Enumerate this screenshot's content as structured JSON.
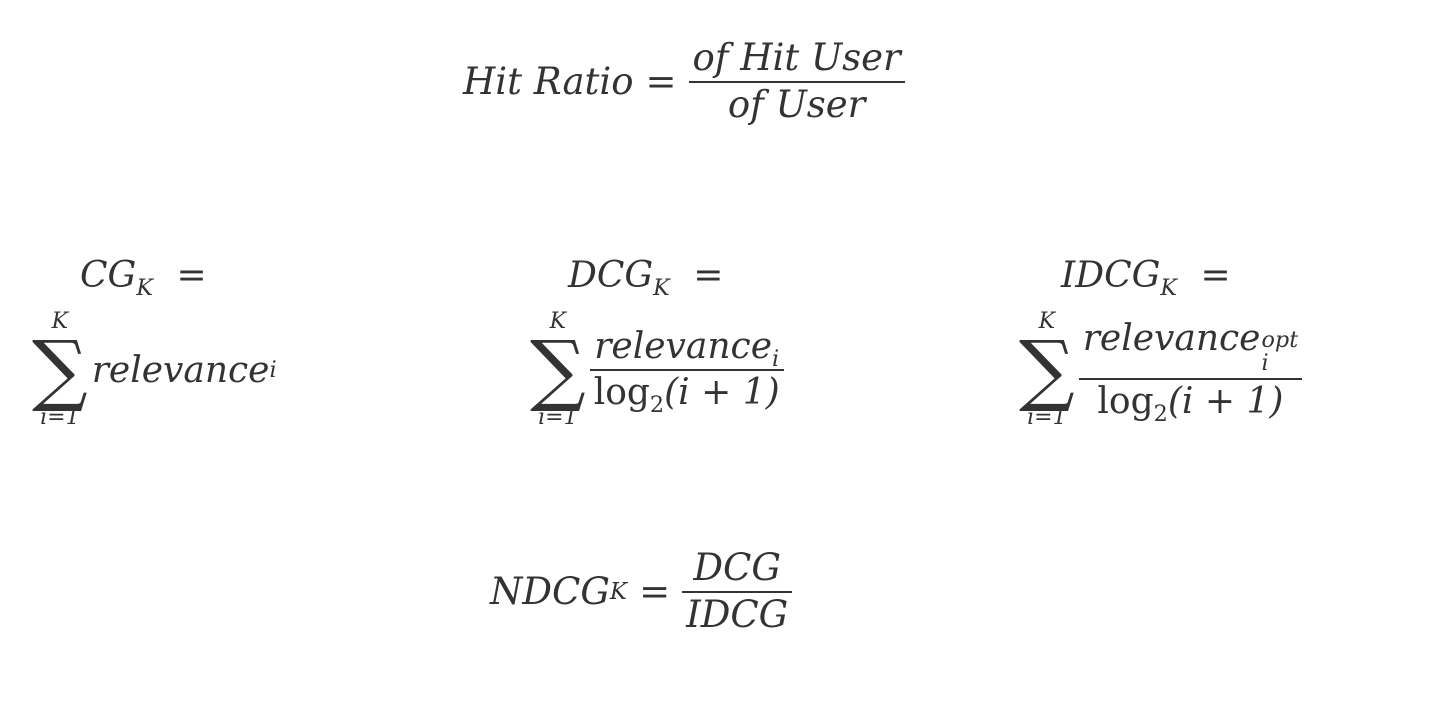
{
  "hit_ratio": {
    "lhs": "Hit Ratio",
    "equals": "=",
    "numerator": "of Hit User",
    "denominator": "of User"
  },
  "cg": {
    "lhs": "CG",
    "lhs_sub": "K",
    "equals": "=",
    "sum_upper": "K",
    "sum_lower": "i=1",
    "sum_symbol": "∑",
    "term": "relevance",
    "term_sub": "i"
  },
  "dcg": {
    "lhs": "DCG",
    "lhs_sub": "K",
    "equals": "=",
    "sum_upper": "K",
    "sum_lower": "i=1",
    "sum_symbol": "∑",
    "numerator": "relevance",
    "numerator_sub": "i",
    "denominator_log": "log",
    "denominator_log_sub": "2",
    "denominator_arg": "(i + 1)"
  },
  "idcg": {
    "lhs": "IDCG",
    "lhs_sub": "K",
    "equals": "=",
    "sum_upper": "K",
    "sum_lower": "i=1",
    "sum_symbol": "∑",
    "numerator": "relevance",
    "numerator_sup": "opt",
    "numerator_sub": "i",
    "denominator_log": "log",
    "denominator_log_sub": "2",
    "denominator_arg": "(i + 1)"
  },
  "ndcg": {
    "lhs": "NDCG",
    "lhs_sub": "K",
    "equals": "=",
    "numerator": "DCG",
    "denominator": "IDCG"
  }
}
